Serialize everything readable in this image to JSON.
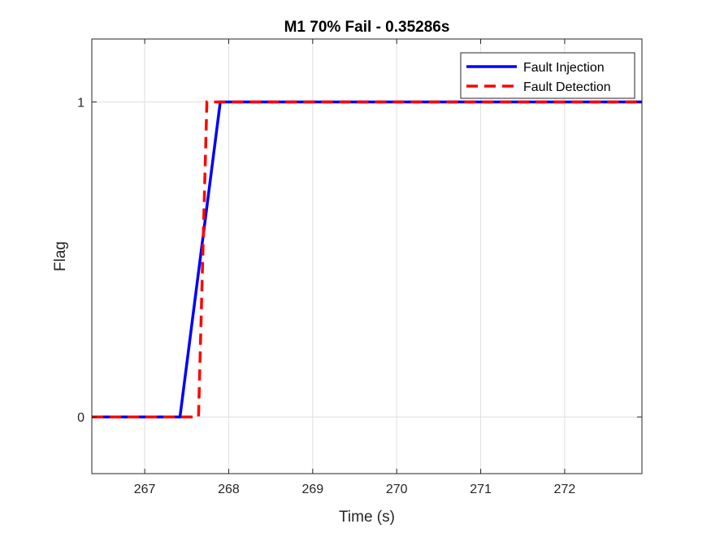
{
  "chart_data": {
    "type": "line",
    "title": "M1 70% Fail - 0.35286s",
    "xlabel": "Time (s)",
    "ylabel": "Flag",
    "xlim": [
      266.37,
      272.92
    ],
    "ylim": [
      -0.18,
      1.2
    ],
    "xticks": [
      267,
      268,
      269,
      270,
      271,
      272
    ],
    "yticks": [
      0,
      1
    ],
    "grid": true,
    "legend_position": "top-right",
    "series": [
      {
        "name": "Fault Injection",
        "color": "#0000ff",
        "style": "solid",
        "x": [
          266.37,
          267.42,
          267.9,
          272.92
        ],
        "y": [
          0,
          0,
          1,
          1
        ]
      },
      {
        "name": "Fault Detection",
        "color": "#ff0000",
        "style": "dashed",
        "x": [
          266.37,
          267.64,
          267.74,
          272.92
        ],
        "y": [
          0,
          0,
          1,
          1
        ]
      }
    ]
  }
}
